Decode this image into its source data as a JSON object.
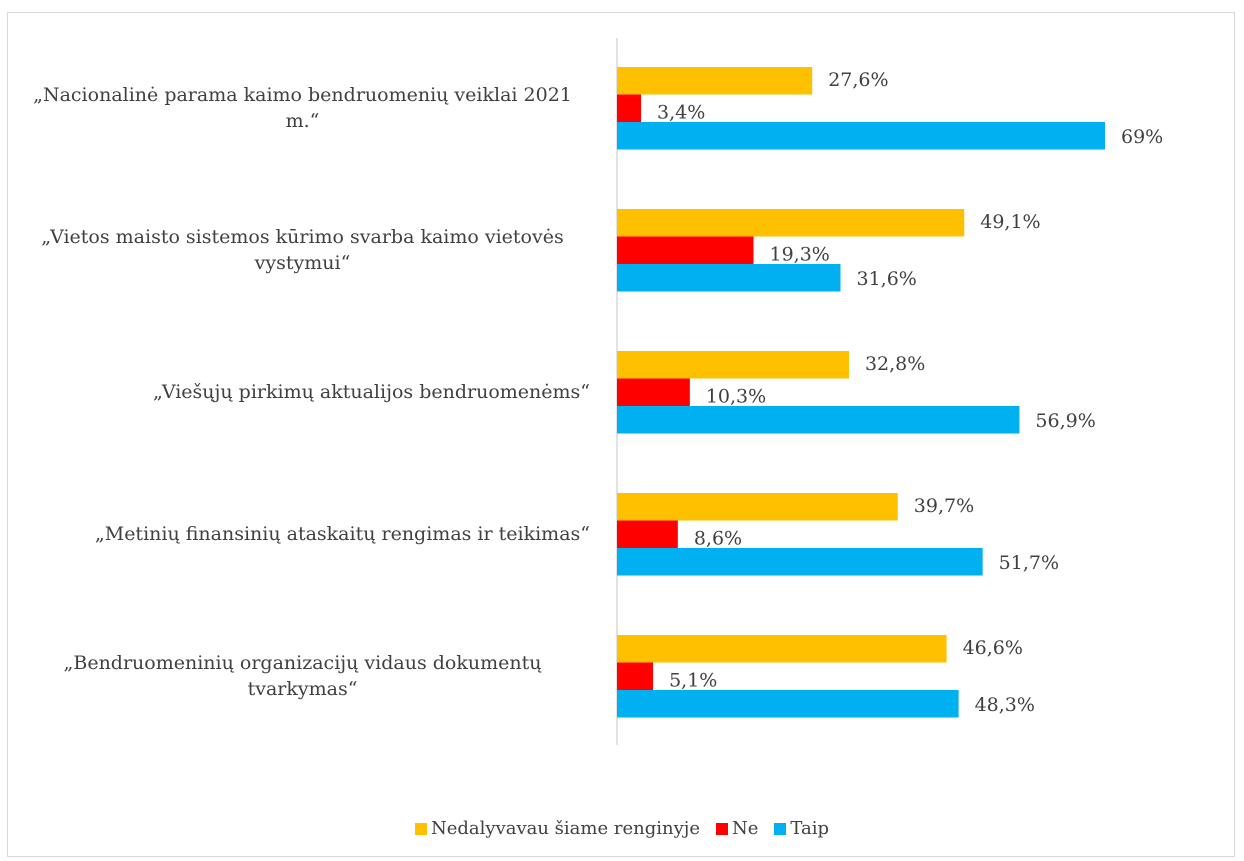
{
  "chart_data": {
    "type": "bar",
    "orientation": "horizontal",
    "categories": [
      "„Nacionalinė parama kaimo bendruomenių veiklai 2021 m.“",
      "„Vietos maisto sistemos kūrimo svarba kaimo vietovės vystymui“",
      "„Viešųjų pirkimų aktualijos bendruomenėms“",
      "„Metinių finansinių ataskaitų rengimas ir teikimas“",
      "„Bendruomeninių organizacijų vidaus dokumentų tvarkymas“"
    ],
    "series": [
      {
        "name": "Nedalyvavau šiame renginyje",
        "color": "#ffc000",
        "values": [
          27.6,
          49.1,
          32.8,
          39.7,
          46.6
        ],
        "value_labels": [
          "27,6%",
          "49,1%",
          "32,8%",
          "39,7%",
          "46,6%"
        ]
      },
      {
        "name": "Ne",
        "color": "#ff0000",
        "values": [
          3.4,
          19.3,
          10.3,
          8.6,
          5.1
        ],
        "value_labels": [
          "3,4%",
          "19,3%",
          "10,3%",
          "8,6%",
          "5,1%"
        ]
      },
      {
        "name": "Taip",
        "color": "#00b0f0",
        "values": [
          69,
          31.6,
          56.9,
          51.7,
          48.3
        ],
        "value_labels": [
          "69%",
          "31,6%",
          "56,9%",
          "51,7%",
          "48,3%"
        ]
      }
    ],
    "legend": "bottom"
  }
}
